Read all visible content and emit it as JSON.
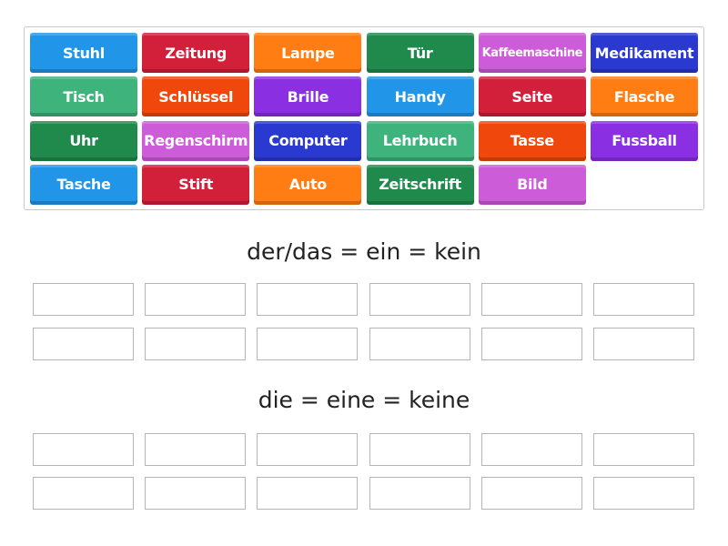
{
  "tiles": [
    {
      "label": "Stuhl",
      "color": "#2196e8"
    },
    {
      "label": "Zeitung",
      "color": "#d21f3a"
    },
    {
      "label": "Lampe",
      "color": "#ff7d12"
    },
    {
      "label": "Tür",
      "color": "#1f8a4c"
    },
    {
      "label": "Kaffeemaschine",
      "color": "#cc5cd8"
    },
    {
      "label": "Medikament",
      "color": "#2a3ad0"
    },
    {
      "label": "Tisch",
      "color": "#3fb37c"
    },
    {
      "label": "Schlüssel",
      "color": "#f0480c"
    },
    {
      "label": "Brille",
      "color": "#8a30e2"
    },
    {
      "label": "Handy",
      "color": "#2196e8"
    },
    {
      "label": "Seite",
      "color": "#d21f3a"
    },
    {
      "label": "Flasche",
      "color": "#ff7d12"
    },
    {
      "label": "Uhr",
      "color": "#1f8a4c"
    },
    {
      "label": "Regenschirm",
      "color": "#cc5cd8"
    },
    {
      "label": "Computer",
      "color": "#2a3ad0"
    },
    {
      "label": "Lehrbuch",
      "color": "#3fb37c"
    },
    {
      "label": "Tasse",
      "color": "#f0480c"
    },
    {
      "label": "Fussball",
      "color": "#8a30e2"
    },
    {
      "label": "Tasche",
      "color": "#2196e8"
    },
    {
      "label": "Stift",
      "color": "#d21f3a"
    },
    {
      "label": "Auto",
      "color": "#ff7d12"
    },
    {
      "label": "Zeitschrift",
      "color": "#1f8a4c"
    },
    {
      "label": "Bild",
      "color": "#cc5cd8"
    }
  ],
  "groups": [
    {
      "title": "der/das = ein = kein",
      "slots": 12
    },
    {
      "title": "die = eine = keine",
      "slots": 12
    }
  ]
}
